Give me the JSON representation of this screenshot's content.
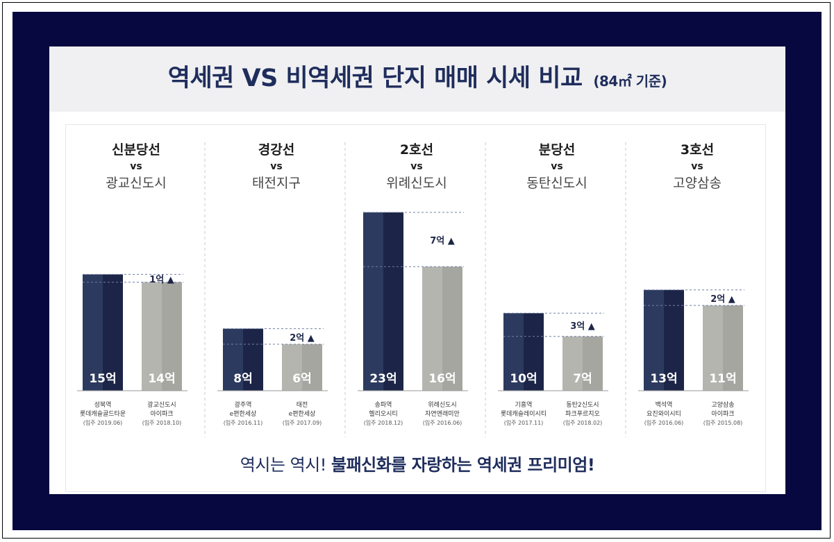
{
  "title": {
    "main": "역세권 VS 비역세권 단지 매매 시세 비교",
    "sub": "(84㎡ 기준)"
  },
  "footer": {
    "part1": "역시는 역시! ",
    "part2": "불패신화를 자랑하는 역세권 프리미엄!"
  },
  "colors": {
    "navy": "#2d3a5f",
    "navy_dark": "#1c2547",
    "gray": "#b5b5b0",
    "gray_dark": "#a6a6a1",
    "title": "#1f2d5c",
    "frame": "#06083f"
  },
  "chart_data": {
    "type": "bar",
    "unit": "억",
    "groups": [
      {
        "line": "신분당선",
        "vs": "vs",
        "area": "광교신도시",
        "station": {
          "value": 15,
          "label": "15억",
          "name": "성북역",
          "complex": "롯데캐슬골드타운",
          "date": "(입주 2019.06)"
        },
        "non_station": {
          "value": 14,
          "label": "14억",
          "name": "광교신도시",
          "complex": "아이파크",
          "date": "(입주 2018.10)"
        },
        "diff": "1억 ▲"
      },
      {
        "line": "경강선",
        "vs": "vs",
        "area": "태전지구",
        "station": {
          "value": 8,
          "label": "8억",
          "name": "광주역",
          "complex": "e편한세상",
          "date": "(입주 2016.11)"
        },
        "non_station": {
          "value": 6,
          "label": "6억",
          "name": "태전",
          "complex": "e편한세상",
          "date": "(입주 2017.09)"
        },
        "diff": "2억 ▲"
      },
      {
        "line": "2호선",
        "vs": "vs",
        "area": "위례신도시",
        "station": {
          "value": 23,
          "label": "23억",
          "name": "송파역",
          "complex": "헬리오시티",
          "date": "(입주 2018.12)"
        },
        "non_station": {
          "value": 16,
          "label": "16억",
          "name": "위례신도시",
          "complex": "자연앤래미안",
          "date": "(입주 2016.06)"
        },
        "diff": "7억 ▲"
      },
      {
        "line": "분당선",
        "vs": "vs",
        "area": "동탄신도시",
        "station": {
          "value": 10,
          "label": "10억",
          "name": "기흥역",
          "complex": "롯데캐슬레이시티",
          "date": "(입주 2017.11)"
        },
        "non_station": {
          "value": 7,
          "label": "7억",
          "name": "동탄2신도시",
          "complex": "파크푸르지오",
          "date": "(입주 2018.02)"
        },
        "diff": "3억 ▲"
      },
      {
        "line": "3호선",
        "vs": "vs",
        "area": "고양삼송",
        "station": {
          "value": 13,
          "label": "13억",
          "name": "백석역",
          "complex": "요진와이시티",
          "date": "(입주 2016.06)"
        },
        "non_station": {
          "value": 11,
          "label": "11억",
          "name": "고양삼송",
          "complex": "아이파크",
          "date": "(입주 2015.08)"
        },
        "diff": "2억 ▲"
      }
    ]
  }
}
